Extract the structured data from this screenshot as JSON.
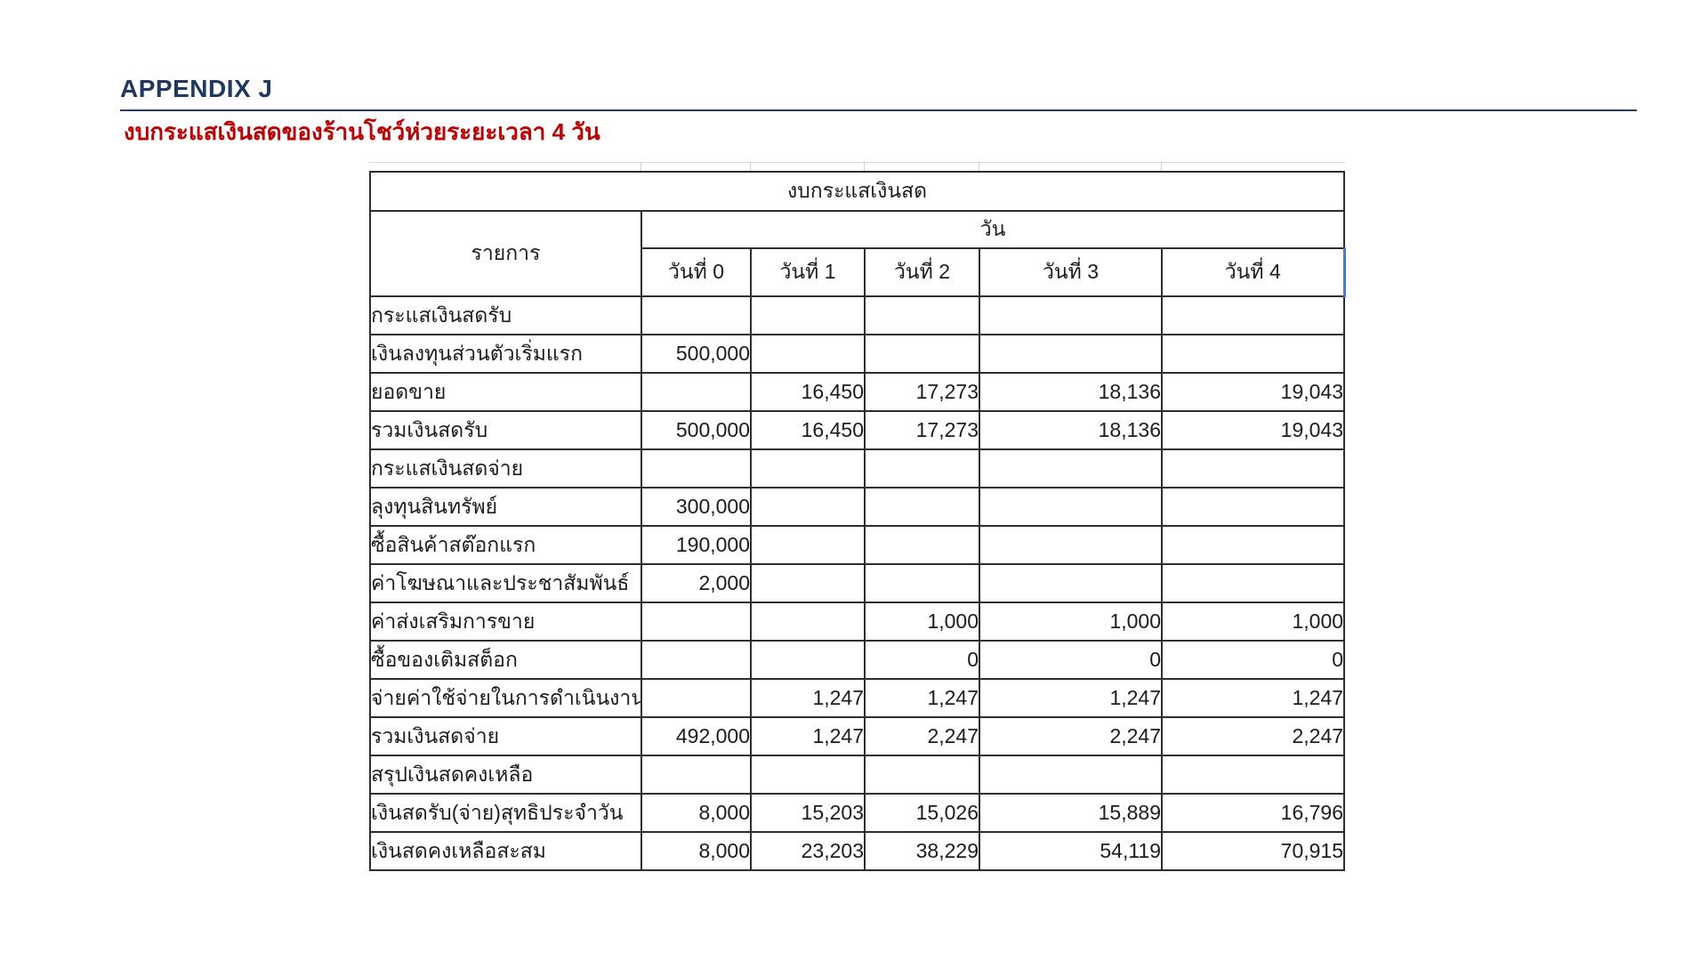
{
  "doc": {
    "heading": "APPENDIX J",
    "subtitle": "งบกระแสเงินสดของร้านโชว์ห่วยระยะเวลา 4 วัน"
  },
  "colors": {
    "heading_navy": "#1F3864",
    "rule_navy": "#2C3A6E",
    "subtitle_red": "#C00000",
    "table_border": "#2e2e2e",
    "selection_blue": "#4579D9",
    "gridline_remnant": "#d4d7da"
  },
  "table": {
    "title": "งบกระแสเงินสด",
    "header": {
      "item_col": "รายการ",
      "day_group": "วัน"
    },
    "day_cols": [
      "วันที่ 0",
      "วันที่ 1",
      "วันที่ 2",
      "วันที่ 3",
      "วันที่ 4"
    ],
    "selected_day_col": "วันที่ 4",
    "rows": [
      {
        "label": "กระแสเงินสดรับ",
        "values": [
          "",
          "",
          "",
          "",
          ""
        ]
      },
      {
        "label": "เงินลงทุนส่วนตัวเริ่มแรก",
        "values": [
          "500,000",
          "",
          "",
          "",
          ""
        ]
      },
      {
        "label": "ยอดขาย",
        "values": [
          "",
          "16,450",
          "17,273",
          "18,136",
          "19,043"
        ]
      },
      {
        "label": "รวมเงินสดรับ",
        "values": [
          "500,000",
          "16,450",
          "17,273",
          "18,136",
          "19,043"
        ]
      },
      {
        "label": "กระแสเงินสดจ่าย",
        "values": [
          "",
          "",
          "",
          "",
          ""
        ]
      },
      {
        "label": "ลุงทุนสินทรัพย์",
        "values": [
          "300,000",
          "",
          "",
          "",
          ""
        ]
      },
      {
        "label": "ซื้อสินค้าสต๊อกแรก",
        "values": [
          "190,000",
          "",
          "",
          "",
          ""
        ]
      },
      {
        "label": "ค่าโฆษณาและประชาสัมพันธ์",
        "values": [
          "2,000",
          "",
          "",
          "",
          ""
        ]
      },
      {
        "label": "ค่าส่งเสริมการขาย",
        "values": [
          "",
          "",
          "1,000",
          "1,000",
          "1,000"
        ]
      },
      {
        "label": "ซื้อของเติมสต็อก",
        "values": [
          "",
          "",
          "0",
          "0",
          "0"
        ]
      },
      {
        "label": "จ่ายค่าใช้จ่ายในการดำเนินงาน",
        "values": [
          "",
          "1,247",
          "1,247",
          "1,247",
          "1,247"
        ]
      },
      {
        "label": "รวมเงินสดจ่าย",
        "values": [
          "492,000",
          "1,247",
          "2,247",
          "2,247",
          "2,247"
        ]
      },
      {
        "label": "สรุปเงินสดคงเหลือ",
        "values": [
          "",
          "",
          "",
          "",
          ""
        ]
      },
      {
        "label": "เงินสดรับ(จ่าย)สุทธิประจำวัน",
        "values": [
          "8,000",
          "15,203",
          "15,026",
          "15,889",
          "16,796"
        ]
      },
      {
        "label": "เงินสดคงเหลือสะสม",
        "values": [
          "8,000",
          "23,203",
          "38,229",
          "54,119",
          "70,915"
        ]
      }
    ]
  }
}
